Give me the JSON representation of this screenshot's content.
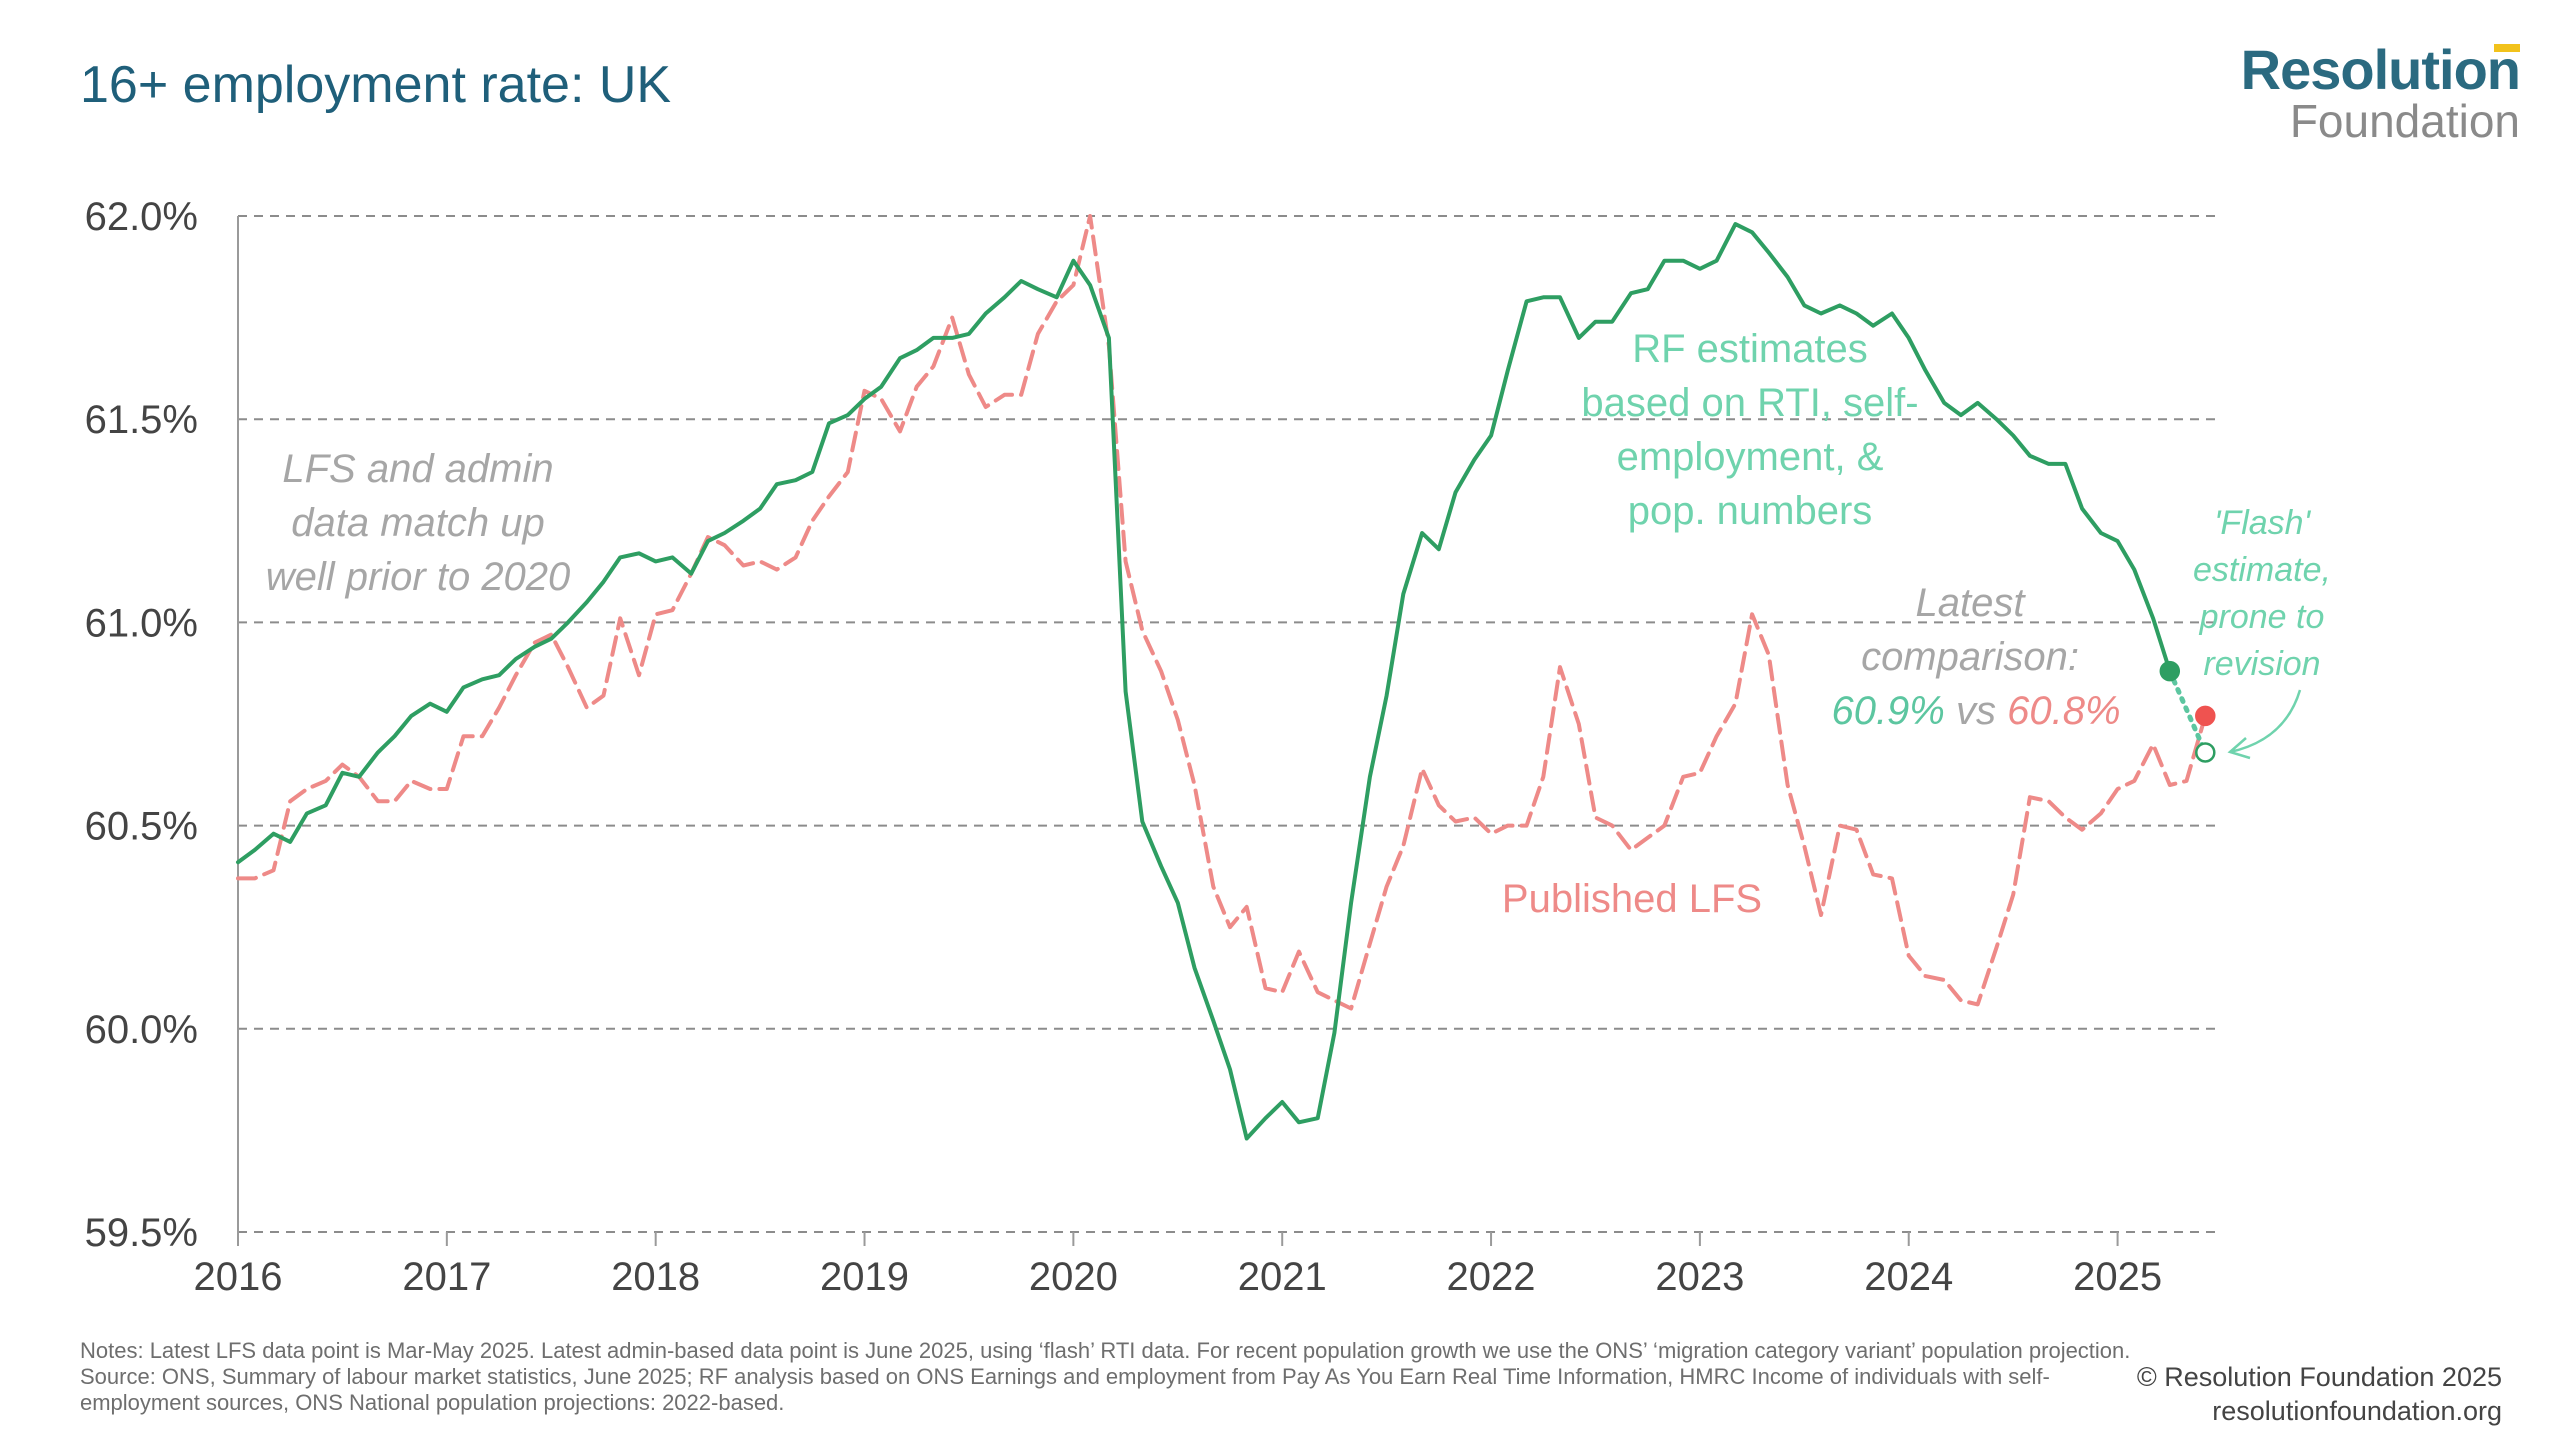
{
  "title": "16+ employment rate: UK",
  "logo": {
    "line1": "Resolution",
    "line2": "Foundation"
  },
  "notes": {
    "notes": "Notes: Latest LFS data point is Mar-May 2025. Latest admin-based data point is June 2025, using ‘flash’ RTI data. For recent population growth we use the ONS’ ‘migration category variant’ population projection.",
    "source": "Source: ONS, Summary of labour market statistics, June 2025; RF analysis based on ONS Earnings and employment from Pay As You Earn Real Time Information, HMRC Income of individuals with self-employment sources, ONS National population projections: 2022-based."
  },
  "credit": {
    "line1": "© Resolution Foundation 2025",
    "line2": "resolutionfoundation.org"
  },
  "chart_data": {
    "type": "line",
    "x_axis": {
      "min": 2016.0,
      "max": 2025.5,
      "ticks": [
        2016,
        2017,
        2018,
        2019,
        2020,
        2021,
        2022,
        2023,
        2024,
        2025
      ],
      "tick_labels": [
        "2016",
        "2017",
        "2018",
        "2019",
        "2020",
        "2021",
        "2022",
        "2023",
        "2024",
        "2025"
      ]
    },
    "y_axis": {
      "min": 59.5,
      "max": 62.0,
      "ticks": [
        59.5,
        60.0,
        60.5,
        61.0,
        61.5,
        62.0
      ],
      "tick_labels": [
        "59.5%",
        "60.0%",
        "60.5%",
        "61.0%",
        "61.5%",
        "62.0%"
      ]
    },
    "grid": "horizontal dashed",
    "series": [
      {
        "key": "rf",
        "color": "#2e9e62",
        "style": "solid",
        "points": [
          [
            2016.0,
            60.41
          ],
          [
            2016.08,
            60.44
          ],
          [
            2016.17,
            60.48
          ],
          [
            2016.25,
            60.46
          ],
          [
            2016.33,
            60.53
          ],
          [
            2016.42,
            60.55
          ],
          [
            2016.5,
            60.63
          ],
          [
            2016.58,
            60.62
          ],
          [
            2016.67,
            60.68
          ],
          [
            2016.75,
            60.72
          ],
          [
            2016.83,
            60.77
          ],
          [
            2016.92,
            60.8
          ],
          [
            2017.0,
            60.78
          ],
          [
            2017.08,
            60.84
          ],
          [
            2017.17,
            60.86
          ],
          [
            2017.25,
            60.87
          ],
          [
            2017.33,
            60.91
          ],
          [
            2017.42,
            60.94
          ],
          [
            2017.5,
            60.96
          ],
          [
            2017.58,
            61.0
          ],
          [
            2017.67,
            61.05
          ],
          [
            2017.75,
            61.1
          ],
          [
            2017.83,
            61.16
          ],
          [
            2017.92,
            61.17
          ],
          [
            2018.0,
            61.15
          ],
          [
            2018.08,
            61.16
          ],
          [
            2018.17,
            61.12
          ],
          [
            2018.25,
            61.2
          ],
          [
            2018.33,
            61.22
          ],
          [
            2018.42,
            61.25
          ],
          [
            2018.5,
            61.28
          ],
          [
            2018.58,
            61.34
          ],
          [
            2018.67,
            61.35
          ],
          [
            2018.75,
            61.37
          ],
          [
            2018.83,
            61.49
          ],
          [
            2018.92,
            61.51
          ],
          [
            2019.0,
            61.55
          ],
          [
            2019.08,
            61.58
          ],
          [
            2019.17,
            61.65
          ],
          [
            2019.25,
            61.67
          ],
          [
            2019.33,
            61.7
          ],
          [
            2019.42,
            61.7
          ],
          [
            2019.5,
            61.71
          ],
          [
            2019.58,
            61.76
          ],
          [
            2019.67,
            61.8
          ],
          [
            2019.75,
            61.84
          ],
          [
            2019.83,
            61.82
          ],
          [
            2019.92,
            61.8
          ],
          [
            2020.0,
            61.89
          ],
          [
            2020.08,
            61.83
          ],
          [
            2020.17,
            61.7
          ],
          [
            2020.25,
            60.83
          ],
          [
            2020.33,
            60.51
          ],
          [
            2020.42,
            60.4
          ],
          [
            2020.5,
            60.31
          ],
          [
            2020.58,
            60.15
          ],
          [
            2020.67,
            60.02
          ],
          [
            2020.75,
            59.9
          ],
          [
            2020.83,
            59.73
          ],
          [
            2020.92,
            59.78
          ],
          [
            2021.0,
            59.82
          ],
          [
            2021.08,
            59.77
          ],
          [
            2021.17,
            59.78
          ],
          [
            2021.25,
            59.99
          ],
          [
            2021.33,
            60.31
          ],
          [
            2021.42,
            60.62
          ],
          [
            2021.5,
            60.82
          ],
          [
            2021.58,
            61.07
          ],
          [
            2021.67,
            61.22
          ],
          [
            2021.75,
            61.18
          ],
          [
            2021.83,
            61.32
          ],
          [
            2021.92,
            61.4
          ],
          [
            2022.0,
            61.46
          ],
          [
            2022.08,
            61.62
          ],
          [
            2022.17,
            61.79
          ],
          [
            2022.25,
            61.8
          ],
          [
            2022.33,
            61.8
          ],
          [
            2022.42,
            61.7
          ],
          [
            2022.5,
            61.74
          ],
          [
            2022.58,
            61.74
          ],
          [
            2022.67,
            61.81
          ],
          [
            2022.75,
            61.82
          ],
          [
            2022.83,
            61.89
          ],
          [
            2022.92,
            61.89
          ],
          [
            2023.0,
            61.87
          ],
          [
            2023.08,
            61.89
          ],
          [
            2023.17,
            61.98
          ],
          [
            2023.25,
            61.96
          ],
          [
            2023.33,
            61.91
          ],
          [
            2023.42,
            61.85
          ],
          [
            2023.5,
            61.78
          ],
          [
            2023.58,
            61.76
          ],
          [
            2023.67,
            61.78
          ],
          [
            2023.75,
            61.76
          ],
          [
            2023.83,
            61.73
          ],
          [
            2023.92,
            61.76
          ],
          [
            2024.0,
            61.7
          ],
          [
            2024.08,
            61.62
          ],
          [
            2024.17,
            61.54
          ],
          [
            2024.25,
            61.51
          ],
          [
            2024.33,
            61.54
          ],
          [
            2024.42,
            61.5
          ],
          [
            2024.5,
            61.46
          ],
          [
            2024.58,
            61.41
          ],
          [
            2024.67,
            61.39
          ],
          [
            2024.75,
            61.39
          ],
          [
            2024.83,
            61.28
          ],
          [
            2024.92,
            61.22
          ],
          [
            2025.0,
            61.2
          ],
          [
            2025.08,
            61.13
          ],
          [
            2025.17,
            61.01
          ],
          [
            2025.25,
            60.88
          ]
        ]
      },
      {
        "key": "lfs",
        "color": "#ee8a88",
        "style": "dashed",
        "points": [
          [
            2016.0,
            60.37
          ],
          [
            2016.08,
            60.37
          ],
          [
            2016.17,
            60.39
          ],
          [
            2016.25,
            60.56
          ],
          [
            2016.33,
            60.59
          ],
          [
            2016.42,
            60.61
          ],
          [
            2016.5,
            60.65
          ],
          [
            2016.58,
            60.62
          ],
          [
            2016.67,
            60.56
          ],
          [
            2016.75,
            60.56
          ],
          [
            2016.83,
            60.61
          ],
          [
            2016.92,
            60.59
          ],
          [
            2017.0,
            60.59
          ],
          [
            2017.08,
            60.72
          ],
          [
            2017.17,
            60.72
          ],
          [
            2017.25,
            60.79
          ],
          [
            2017.33,
            60.87
          ],
          [
            2017.42,
            60.95
          ],
          [
            2017.5,
            60.97
          ],
          [
            2017.58,
            60.89
          ],
          [
            2017.67,
            60.79
          ],
          [
            2017.75,
            60.82
          ],
          [
            2017.83,
            61.01
          ],
          [
            2017.92,
            60.87
          ],
          [
            2018.0,
            61.02
          ],
          [
            2018.08,
            61.03
          ],
          [
            2018.17,
            61.12
          ],
          [
            2018.25,
            61.21
          ],
          [
            2018.33,
            61.19
          ],
          [
            2018.42,
            61.14
          ],
          [
            2018.5,
            61.15
          ],
          [
            2018.58,
            61.13
          ],
          [
            2018.67,
            61.16
          ],
          [
            2018.75,
            61.25
          ],
          [
            2018.83,
            61.31
          ],
          [
            2018.92,
            61.37
          ],
          [
            2019.0,
            61.57
          ],
          [
            2019.08,
            61.55
          ],
          [
            2019.17,
            61.47
          ],
          [
            2019.25,
            61.58
          ],
          [
            2019.33,
            61.63
          ],
          [
            2019.42,
            61.75
          ],
          [
            2019.5,
            61.61
          ],
          [
            2019.58,
            61.53
          ],
          [
            2019.67,
            61.56
          ],
          [
            2019.75,
            61.56
          ],
          [
            2019.83,
            61.71
          ],
          [
            2019.92,
            61.79
          ],
          [
            2020.0,
            61.83
          ],
          [
            2020.08,
            62.0
          ],
          [
            2020.17,
            61.68
          ],
          [
            2020.25,
            61.15
          ],
          [
            2020.33,
            60.98
          ],
          [
            2020.42,
            60.88
          ],
          [
            2020.5,
            60.76
          ],
          [
            2020.58,
            60.6
          ],
          [
            2020.67,
            60.35
          ],
          [
            2020.75,
            60.25
          ],
          [
            2020.83,
            60.3
          ],
          [
            2020.92,
            60.1
          ],
          [
            2021.0,
            60.09
          ],
          [
            2021.08,
            60.19
          ],
          [
            2021.17,
            60.09
          ],
          [
            2021.25,
            60.07
          ],
          [
            2021.33,
            60.05
          ],
          [
            2021.42,
            60.21
          ],
          [
            2021.5,
            60.35
          ],
          [
            2021.58,
            60.45
          ],
          [
            2021.67,
            60.64
          ],
          [
            2021.75,
            60.55
          ],
          [
            2021.83,
            60.51
          ],
          [
            2021.92,
            60.52
          ],
          [
            2022.0,
            60.48
          ],
          [
            2022.08,
            60.5
          ],
          [
            2022.17,
            60.5
          ],
          [
            2022.25,
            60.62
          ],
          [
            2022.33,
            60.89
          ],
          [
            2022.42,
            60.75
          ],
          [
            2022.5,
            60.52
          ],
          [
            2022.58,
            60.5
          ],
          [
            2022.67,
            60.44
          ],
          [
            2022.75,
            60.47
          ],
          [
            2022.83,
            60.5
          ],
          [
            2022.92,
            60.62
          ],
          [
            2023.0,
            60.63
          ],
          [
            2023.08,
            60.72
          ],
          [
            2023.17,
            60.8
          ],
          [
            2023.25,
            61.02
          ],
          [
            2023.33,
            60.92
          ],
          [
            2023.42,
            60.6
          ],
          [
            2023.5,
            60.45
          ],
          [
            2023.58,
            60.28
          ],
          [
            2023.67,
            60.5
          ],
          [
            2023.75,
            60.49
          ],
          [
            2023.83,
            60.38
          ],
          [
            2023.92,
            60.37
          ],
          [
            2024.0,
            60.18
          ],
          [
            2024.08,
            60.13
          ],
          [
            2024.17,
            60.12
          ],
          [
            2024.25,
            60.07
          ],
          [
            2024.33,
            60.06
          ],
          [
            2024.42,
            60.2
          ],
          [
            2024.5,
            60.33
          ],
          [
            2024.58,
            60.57
          ],
          [
            2024.67,
            60.56
          ],
          [
            2024.75,
            60.52
          ],
          [
            2024.83,
            60.49
          ],
          [
            2024.92,
            60.53
          ],
          [
            2025.0,
            60.59
          ],
          [
            2025.08,
            60.61
          ],
          [
            2025.17,
            60.7
          ],
          [
            2025.25,
            60.6
          ],
          [
            2025.33,
            60.61
          ],
          [
            2025.42,
            60.77
          ]
        ]
      },
      {
        "key": "flash",
        "color": "#5cc6a0",
        "style": "dotted",
        "points": [
          [
            2025.25,
            60.88
          ],
          [
            2025.42,
            60.68
          ]
        ]
      }
    ],
    "markers": [
      {
        "x": 2025.25,
        "y": 60.88,
        "fill": "#2e9e62",
        "stroke": "#2e9e62"
      },
      {
        "x": 2025.42,
        "y": 60.77,
        "fill": "#ef5350",
        "stroke": "#ef5350"
      },
      {
        "x": 2025.42,
        "y": 60.68,
        "fill": "#ffffff",
        "stroke": "#2e9e62"
      }
    ],
    "annotations": {
      "lfs_admin": [
        "LFS and admin",
        "data match up",
        "well prior to 2020"
      ],
      "rf_estimates": [
        "RF estimates",
        "based on RTI, self-",
        "employment, &",
        "pop. numbers"
      ],
      "latest": [
        "Latest",
        "comparison:"
      ],
      "latest_values": {
        "rf": "60.9%",
        "vs": " vs ",
        "lfs": "60.8%"
      },
      "published_lfs": "Published LFS",
      "flash": [
        "'Flash'",
        "estimate,",
        "prone to",
        "revision"
      ]
    }
  }
}
